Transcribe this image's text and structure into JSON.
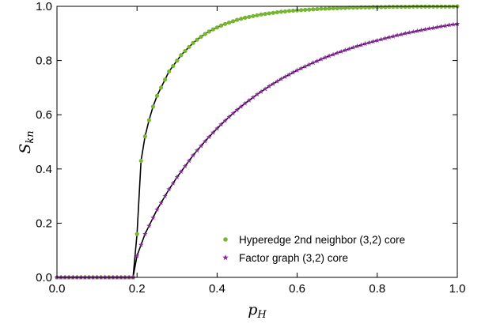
{
  "chart_data": {
    "type": "line",
    "xlabel": {
      "main": "p",
      "sub": "H"
    },
    "ylabel": {
      "main": "S",
      "sub": "kn"
    },
    "xlim": [
      0,
      1
    ],
    "ylim": [
      0,
      1
    ],
    "xticks": [
      "0.0",
      "0.2",
      "0.4",
      "0.6",
      "0.8",
      "1.0"
    ],
    "yticks": [
      "0.0",
      "0.2",
      "0.4",
      "0.6",
      "0.8",
      "1.0"
    ],
    "legend_position": "lower-right",
    "colors": {
      "hyperedge": "#77b631",
      "factor": "#8a2a9c",
      "theory": "#000000"
    },
    "series": [
      {
        "name": "Hyperedge 2nd  neighbor (3,2) core",
        "marker": "circle",
        "x": [
          0.0,
          0.01,
          0.02,
          0.03,
          0.04,
          0.05,
          0.06,
          0.07,
          0.08,
          0.09,
          0.1,
          0.11,
          0.12,
          0.13,
          0.14,
          0.15,
          0.16,
          0.17,
          0.18,
          0.19,
          0.2,
          0.21,
          0.22,
          0.23,
          0.24,
          0.25,
          0.26,
          0.27,
          0.28,
          0.29,
          0.3,
          0.31,
          0.32,
          0.33,
          0.34,
          0.35,
          0.36,
          0.37,
          0.38,
          0.39,
          0.4,
          0.41,
          0.42,
          0.43,
          0.44,
          0.45,
          0.46,
          0.47,
          0.48,
          0.49,
          0.5,
          0.51,
          0.52,
          0.53,
          0.54,
          0.55,
          0.56,
          0.57,
          0.58,
          0.59,
          0.6,
          0.61,
          0.62,
          0.63,
          0.64,
          0.65,
          0.66,
          0.67,
          0.68,
          0.69,
          0.7,
          0.71,
          0.72,
          0.73,
          0.74,
          0.75,
          0.76,
          0.77,
          0.78,
          0.79,
          0.8,
          0.81,
          0.82,
          0.83,
          0.84,
          0.85,
          0.86,
          0.87,
          0.88,
          0.89,
          0.9,
          0.91,
          0.92,
          0.93,
          0.94,
          0.95,
          0.96,
          0.97,
          0.98,
          0.99,
          1.0
        ],
        "y": [
          0.0,
          0.0,
          0.0,
          0.0,
          0.0,
          0.0,
          0.0,
          0.0,
          0.0,
          0.0,
          0.0,
          0.0,
          0.0,
          0.0,
          0.0,
          0.0,
          0.0,
          0.0,
          0.0,
          0.0,
          0.16,
          0.43,
          0.52,
          0.58,
          0.63,
          0.67,
          0.7,
          0.73,
          0.76,
          0.78,
          0.8,
          0.82,
          0.835,
          0.85,
          0.865,
          0.877,
          0.888,
          0.898,
          0.907,
          0.915,
          0.922,
          0.929,
          0.935,
          0.94,
          0.945,
          0.95,
          0.954,
          0.958,
          0.961,
          0.964,
          0.967,
          0.97,
          0.972,
          0.974,
          0.976,
          0.978,
          0.98,
          0.981,
          0.983,
          0.984,
          0.985,
          0.986,
          0.987,
          0.988,
          0.989,
          0.99,
          0.991,
          0.991,
          0.992,
          0.993,
          0.993,
          0.994,
          0.994,
          0.995,
          0.995,
          0.995,
          0.996,
          0.996,
          0.996,
          0.997,
          0.997,
          0.997,
          0.997,
          0.998,
          0.998,
          0.998,
          0.998,
          0.998,
          0.998,
          0.999,
          0.999,
          0.999,
          0.999,
          0.999,
          0.999,
          0.999,
          0.999,
          0.999,
          0.999,
          0.999,
          1.0
        ]
      },
      {
        "name": "Factor graph (3,2) core",
        "marker": "star",
        "x": [
          0.0,
          0.01,
          0.02,
          0.03,
          0.04,
          0.05,
          0.06,
          0.07,
          0.08,
          0.09,
          0.1,
          0.11,
          0.12,
          0.13,
          0.14,
          0.15,
          0.16,
          0.17,
          0.18,
          0.19,
          0.2,
          0.21,
          0.22,
          0.23,
          0.24,
          0.25,
          0.26,
          0.27,
          0.28,
          0.29,
          0.3,
          0.31,
          0.32,
          0.33,
          0.34,
          0.35,
          0.36,
          0.37,
          0.38,
          0.39,
          0.4,
          0.41,
          0.42,
          0.43,
          0.44,
          0.45,
          0.46,
          0.47,
          0.48,
          0.49,
          0.5,
          0.51,
          0.52,
          0.53,
          0.54,
          0.55,
          0.56,
          0.57,
          0.58,
          0.59,
          0.6,
          0.61,
          0.62,
          0.63,
          0.64,
          0.65,
          0.66,
          0.67,
          0.68,
          0.69,
          0.7,
          0.71,
          0.72,
          0.73,
          0.74,
          0.75,
          0.76,
          0.77,
          0.78,
          0.79,
          0.8,
          0.81,
          0.82,
          0.83,
          0.84,
          0.85,
          0.86,
          0.87,
          0.88,
          0.89,
          0.9,
          0.91,
          0.92,
          0.93,
          0.94,
          0.95,
          0.96,
          0.97,
          0.98,
          0.99,
          1.0
        ],
        "y": [
          0.0,
          0.0,
          0.0,
          0.0,
          0.0,
          0.0,
          0.0,
          0.0,
          0.0,
          0.0,
          0.0,
          0.0,
          0.0,
          0.0,
          0.0,
          0.0,
          0.0,
          0.0,
          0.0,
          0.0,
          0.08,
          0.12,
          0.16,
          0.19,
          0.22,
          0.25,
          0.275,
          0.3,
          0.325,
          0.347,
          0.37,
          0.39,
          0.41,
          0.43,
          0.45,
          0.468,
          0.485,
          0.502,
          0.518,
          0.534,
          0.549,
          0.564,
          0.578,
          0.592,
          0.605,
          0.618,
          0.63,
          0.642,
          0.653,
          0.664,
          0.675,
          0.685,
          0.695,
          0.705,
          0.714,
          0.723,
          0.732,
          0.74,
          0.748,
          0.756,
          0.764,
          0.771,
          0.778,
          0.785,
          0.792,
          0.798,
          0.805,
          0.811,
          0.817,
          0.822,
          0.828,
          0.833,
          0.838,
          0.843,
          0.848,
          0.853,
          0.857,
          0.862,
          0.866,
          0.87,
          0.874,
          0.878,
          0.882,
          0.886,
          0.889,
          0.893,
          0.896,
          0.9,
          0.903,
          0.906,
          0.909,
          0.912,
          0.915,
          0.918,
          0.92,
          0.923,
          0.926,
          0.928,
          0.931,
          0.933,
          0.935
        ]
      }
    ]
  }
}
